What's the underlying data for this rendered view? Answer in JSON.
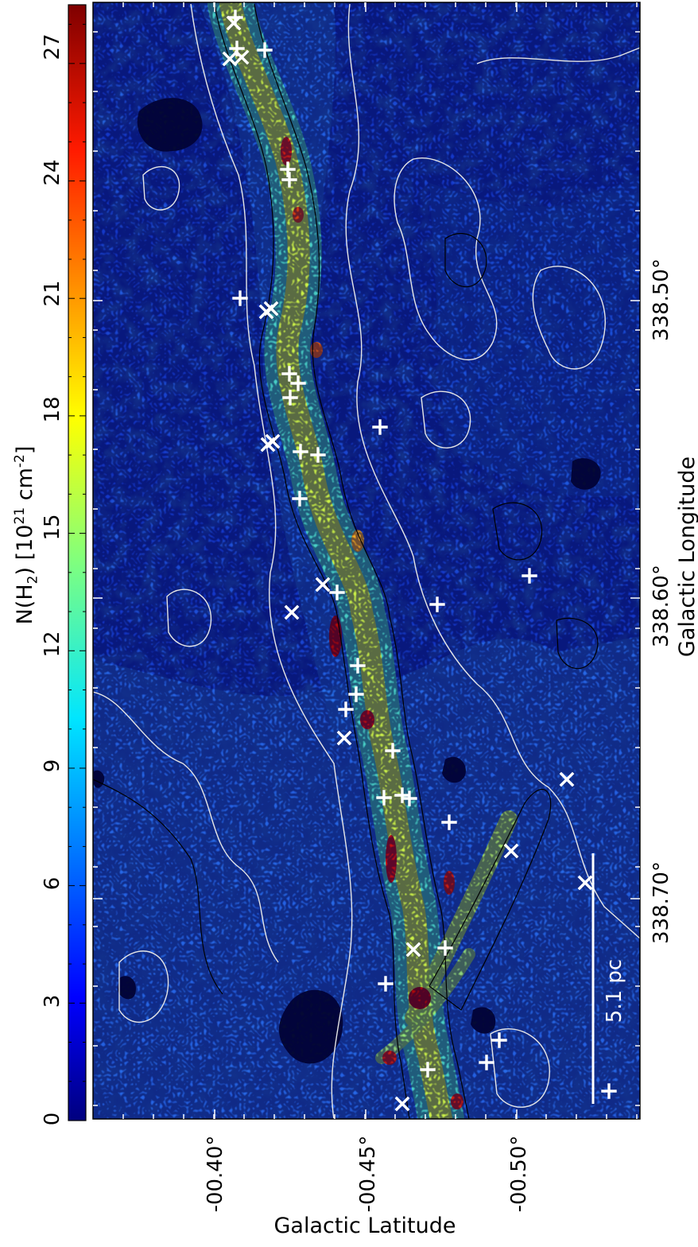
{
  "figure": {
    "colorbar": {
      "label": "N(H₂) [10²¹ cm⁻²]",
      "label_parts": {
        "main": "N(H",
        "sub": "2",
        "mid": ") [10",
        "sup1": "21",
        "unit": " cm",
        "sup2": "-2",
        "end": "]"
      },
      "ticks": [
        "0",
        "3",
        "6",
        "9",
        "12",
        "15",
        "18",
        "21",
        "24",
        "27"
      ],
      "range": [
        0,
        28.5
      ],
      "colormap": "jet"
    },
    "x_axis": {
      "title": "Galactic Longitude",
      "ticks": [
        "338.50°",
        "338.60°",
        "338.70°"
      ]
    },
    "y_axis": {
      "title": "Galactic Latitude",
      "ticks": [
        "-00.40°",
        "-00.45°",
        "-00.50°"
      ]
    },
    "scale_bar": {
      "label": "5.1 pc"
    },
    "markers": {
      "plus_symbol": "+",
      "cross_symbol": "×",
      "color": "#ffffff"
    },
    "colors": {
      "background_low": "#0a1c9e",
      "filament_high": "#d01010",
      "contour_white": "#e6e6e6",
      "contour_black": "#000000"
    }
  }
}
